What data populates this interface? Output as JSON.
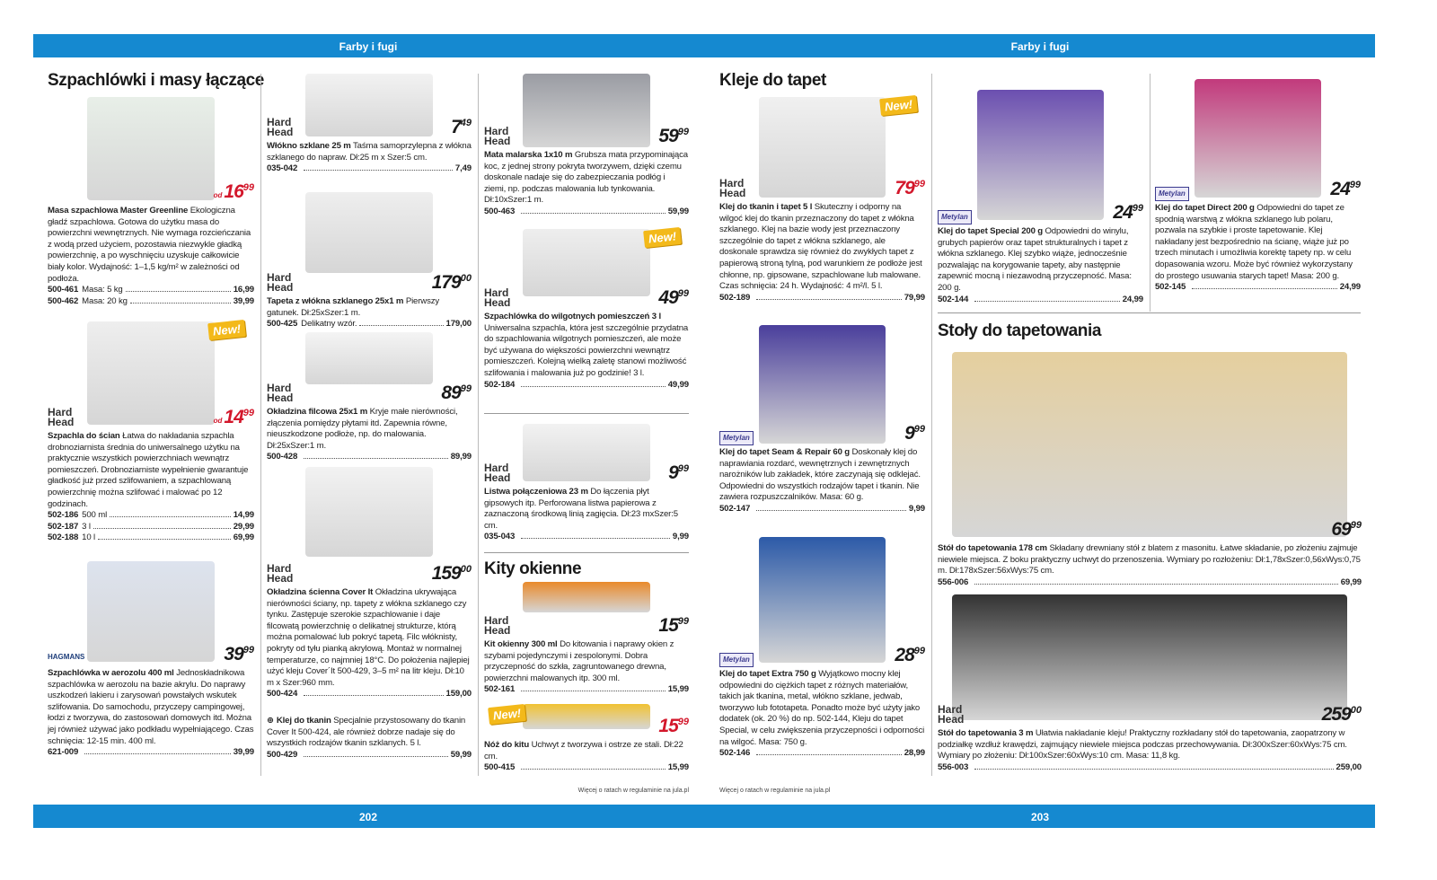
{
  "header": {
    "left": "Farby i fugi",
    "right": "Farby i fugi"
  },
  "footer": {
    "left": "202",
    "right": "203"
  },
  "notes": [
    "Więcej o ratach w regulaminie na jula.pl",
    "Więcej o ratach w regulaminie na jula.pl"
  ],
  "sections": [
    "Szpachlówki i masy łączące",
    "Kity okienne",
    "Kleje do tapet",
    "Stoły do tapetowania"
  ],
  "products": [
    {
      "brand": "",
      "badge": "",
      "price": {
        "prefix": "od",
        "main": "16",
        "cents": "99"
      },
      "name": "Masa szpachlowa Master Greenline",
      "desc": "Ekologiczna gładź szpachlowa. Gotowa do użytku masa do powierzchni wewnętrznych. Nie wymaga rozcieńczania z wodą przed użyciem, pozostawia niezwykle gładką powierzchnię, a po wyschnięciu uzyskuje całkowicie biały kolor. Wydajność: 1–1,5 kg/m² w zależności od podłoża.",
      "skus": [
        {
          "code": "500-461",
          "text": "Masa: 5 kg",
          "price": "16,99"
        },
        {
          "code": "500-462",
          "text": "Masa: 20 kg",
          "price": "39,99"
        }
      ]
    },
    {
      "brand": "Hard Head",
      "badge": "New!",
      "price": {
        "prefix": "od",
        "main": "14",
        "cents": "99"
      },
      "name": "Szpachla do ścian",
      "desc": "Łatwa do nakładania szpachla drobnoziarnista średnia do uniwersalnego użytku na praktycznie wszystkich powierzchniach wewnątrz pomieszczeń. Drobnoziarniste wypełnienie gwarantuje gładkość już przed szlifowaniem, a szpachlowaną powierzchnię można szlifować i malować po 12 godzinach.",
      "skus": [
        {
          "code": "502-186",
          "text": "500 ml",
          "price": "14,99"
        },
        {
          "code": "502-187",
          "text": "3 l",
          "price": "29,99"
        },
        {
          "code": "502-188",
          "text": "10 l",
          "price": "69,99"
        }
      ]
    },
    {
      "brand": "HAGMANS",
      "badge": "",
      "price": {
        "prefix": "",
        "main": "39",
        "cents": "99"
      },
      "name": "Szpachlówka w aerozolu 400 ml",
      "desc": "Jednoskładnikowa szpachlówka w aerozolu na bazie akrylu. Do naprawy uszkodzeń lakieru i zarysowań powstałych wskutek szlifowania. Do samochodu, przyczepy campingowej, łodzi z tworzywa, do zastosowań domowych itd. Można jej również używać jako podkładu wypełniającego. Czas schnięcia: 12-15 min. 400 ml.",
      "skus": [
        {
          "code": "621-009",
          "text": "",
          "price": "39,99"
        }
      ]
    },
    {
      "brand": "Hard Head",
      "badge": "",
      "price": {
        "prefix": "",
        "main": "7",
        "cents": "49"
      },
      "name": "Włókno szklane 25 m",
      "desc": "Taśma samoprzylepna z włókna szklanego do napraw. Dł:25 m x Szer:5 cm.",
      "skus": [
        {
          "code": "035-042",
          "text": "",
          "price": "7,49"
        }
      ]
    },
    {
      "brand": "Hard Head",
      "badge": "",
      "price": {
        "prefix": "",
        "main": "179",
        "cents": "00"
      },
      "name": "Tapeta z włókna szklanego 25x1 m",
      "desc": "Pierwszy gatunek. Dł:25xSzer:1 m.",
      "skus": [
        {
          "code": "500-425",
          "text": "Delikatny wzór.",
          "price": "179,00"
        }
      ]
    },
    {
      "brand": "Hard Head",
      "badge": "",
      "price": {
        "prefix": "",
        "main": "89",
        "cents": "99"
      },
      "name": "Okładzina filcowa 25x1 m",
      "desc": "Kryje małe nierówności, złączenia pomiędzy płytami itd. Zapewnia równe, nieuszkodzone podłoże, np. do malowania. Dł:25xSzer:1 m.",
      "skus": [
        {
          "code": "500-428",
          "text": "",
          "price": "89,99"
        }
      ]
    },
    {
      "brand": "Hard Head",
      "badge": "",
      "price": {
        "prefix": "",
        "main": "159",
        "cents": "00"
      },
      "name": "Okładzina ścienna Cover It",
      "desc": "Okładzina ukrywająca nierówności ściany, np. tapety z włókna szklanego czy tynku. Zastępuje szerokie szpachlowanie i daje filcowatą powierzchnię o delikatnej strukturze, którą można pomalować lub pokryć tapetą. Filc włóknisty, pokryty od tyłu pianką akrylową. Montaż w normalnej temperaturze, co najmniej 18°C. Do położenia najlepiej użyć kleju Cover´It 500-429, 3–5 m² na litr kleju. Dł:10 m x Szer:960 mm.",
      "skus": [
        {
          "code": "500-424",
          "text": "",
          "price": "159,00"
        }
      ]
    },
    {
      "brand": "",
      "badge": "",
      "price": {
        "prefix": "",
        "main": "",
        "cents": ""
      },
      "name": "Klej do tkanin",
      "desc": "Specjalnie przystosowany do tkanin Cover It 500-424, ale również dobrze nadaje się do wszystkich rodzajów tkanin szklanych. 5 l.",
      "skus": [
        {
          "code": "500-429",
          "text": "",
          "price": "59,99"
        }
      ]
    },
    {
      "brand": "Hard Head",
      "badge": "",
      "price": {
        "prefix": "",
        "main": "59",
        "cents": "99"
      },
      "name": "Mata malarska 1x10 m",
      "desc": "Grubsza mata przypominająca koc, z jednej strony pokryta tworzywem, dzięki czemu doskonale nadaje się do zabezpieczania podłóg i ziemi, np. podczas malowania lub tynkowania. Dł:10xSzer:1 m.",
      "skus": [
        {
          "code": "500-463",
          "text": "",
          "price": "59,99"
        }
      ]
    },
    {
      "brand": "Hard Head",
      "badge": "New!",
      "price": {
        "prefix": "",
        "main": "49",
        "cents": "99"
      },
      "name": "Szpachlówka do wilgotnych pomieszczeń 3 l",
      "desc": "Uniwersalna szpachla, która jest szczególnie przydatna do szpachlowania wilgotnych pomieszczeń, ale może być używana do większości powierzchni wewnątrz pomieszczeń. Kolejną wielką zaletę stanowi możliwość szlifowania i malowania już po godzinie! 3 l.",
      "skus": [
        {
          "code": "502-184",
          "text": "",
          "price": "49,99"
        }
      ]
    },
    {
      "brand": "Hard Head",
      "badge": "",
      "price": {
        "prefix": "",
        "main": "9",
        "cents": "99"
      },
      "name": "Listwa połączeniowa 23 m",
      "desc": "Do łączenia płyt gipsowych itp. Perforowana listwa papierowa z zaznaczoną środkową linią zagięcia. Dł:23 mxSzer:5 cm.",
      "skus": [
        {
          "code": "035-043",
          "text": "",
          "price": "9,99"
        }
      ]
    },
    {
      "brand": "Hard Head",
      "badge": "",
      "price": {
        "prefix": "",
        "main": "15",
        "cents": "99"
      },
      "name": "Kit okienny 300 ml",
      "desc": "Do kitowania i naprawy okien z szybami pojedynczymi i zespolonymi. Dobra przyczepność do szkła, zagruntowanego drewna, powierzchni malowanych itp. 300 ml.",
      "skus": [
        {
          "code": "502-161",
          "text": "",
          "price": "15,99"
        }
      ]
    },
    {
      "brand": "",
      "badge": "New!",
      "price": {
        "prefix": "",
        "main": "15",
        "cents": "99"
      },
      "name": "Nóż do kitu",
      "desc": "Uchwyt z tworzywa i ostrze ze stali. Dł:22 cm.",
      "skus": [
        {
          "code": "500-415",
          "text": "",
          "price": "15,99"
        }
      ]
    },
    {
      "brand": "Hard Head",
      "badge": "New!",
      "price": {
        "prefix": "",
        "main": "79",
        "cents": "99"
      },
      "name": "Klej do tkanin i tapet 5 l",
      "desc": "Skuteczny i odporny na wilgoć klej do tkanin przeznaczony do tapet z włókna szklanego. Klej na bazie wody jest przeznaczony szczególnie do tapet z włókna szklanego, ale doskonale sprawdza się również do zwykłych tapet z papierową stroną tylną, pod warunkiem że podłoże jest chłonne, np. gipsowane, szpachlowane lub malowane. Czas schnięcia: 24 h. Wydajność: 4 m²/l. 5 l.",
      "skus": [
        {
          "code": "502-189",
          "text": "",
          "price": "79,99"
        }
      ]
    },
    {
      "brand": "Metylan",
      "badge": "",
      "price": {
        "prefix": "",
        "main": "9",
        "cents": "99"
      },
      "name": "Klej do tapet Seam & Repair 60 g",
      "desc": "Doskonały klej do naprawiania rozdarć, wewnętrznych i zewnętrznych narożników lub zakładek, które zaczynają się odklejać. Odpowiedni do wszystkich rodzajów tapet i tkanin. Nie zawiera rozpuszczalników. Masa: 60 g.",
      "skus": [
        {
          "code": "502-147",
          "text": "",
          "price": "9,99"
        }
      ]
    },
    {
      "brand": "Metylan",
      "badge": "",
      "price": {
        "prefix": "",
        "main": "28",
        "cents": "99"
      },
      "name": "Klej do tapet Extra 750 g",
      "desc": "Wyjątkowo mocny klej odpowiedni do ciężkich tapet z różnych materiałów, takich jak tkanina, metal, włókno szklane, jedwab, tworzywo lub fototapeta. Ponadto może być użyty jako dodatek (ok. 20 %) do np. 502-144, Kleju do tapet Special, w celu zwiększenia przyczepności i odporności na wilgoć. Masa: 750 g.",
      "skus": [
        {
          "code": "502-146",
          "text": "",
          "price": "28,99"
        }
      ]
    },
    {
      "brand": "Metylan",
      "badge": "",
      "price": {
        "prefix": "",
        "main": "24",
        "cents": "99"
      },
      "name": "Klej do tapet Special 200 g",
      "desc": "Odpowiedni do winylu, grubych papierów oraz tapet strukturalnych i tapet z włókna szklanego. Klej szybko wiąże, jednocześnie pozwalając na korygowanie tapety, aby następnie zapewnić mocną i niezawodną przyczepność. Masa: 200 g.",
      "skus": [
        {
          "code": "502-144",
          "text": "",
          "price": "24,99"
        }
      ]
    },
    {
      "brand": "Metylan",
      "badge": "",
      "price": {
        "prefix": "",
        "main": "24",
        "cents": "99"
      },
      "name": "Klej do tapet Direct 200 g",
      "desc": "Odpowiedni do tapet ze spodnią warstwą z włókna szklanego lub polaru, pozwala na szybkie i proste tapetowanie. Klej nakładany jest bezpośrednio na ścianę, wiąże już po trzech minutach i umożliwia korektę tapety np. w celu dopasowania wzoru. Może być również wykorzystany do prostego usuwania starych tapet! Masa: 200 g.",
      "skus": [
        {
          "code": "502-145",
          "text": "",
          "price": "24,99"
        }
      ]
    },
    {
      "brand": "",
      "badge": "",
      "price": {
        "prefix": "",
        "main": "69",
        "cents": "99"
      },
      "name": "Stół do tapetowania 178 cm",
      "desc": "Składany drewniany stół z blatem z masonitu. Łatwe składanie, po złożeniu zajmuje niewiele miejsca. Z boku praktyczny uchwyt do przenoszenia. Wymiary po rozłożeniu: Dł:1,78xSzer:0,56xWys:0,75 m. Dł:178xSzer:56xWys:75 cm.",
      "skus": [
        {
          "code": "556-006",
          "text": "",
          "price": "69,99"
        }
      ]
    },
    {
      "brand": "Hard Head",
      "badge": "",
      "price": {
        "prefix": "",
        "main": "259",
        "cents": "00"
      },
      "name": "Stół do tapetowania 3 m",
      "desc": "Ułatwia nakładanie kleju! Praktyczny rozkładany stół do tapetowania, zaopatrzony w podziałkę wzdłuż krawędzi, zajmujący niewiele miejsca podczas przechowywania. Dł:300xSzer:60xWys:75 cm. Wymiary po złożeniu: Dł:100xSzer:60xWys:10 cm. Masa: 11,8 kg.",
      "skus": [
        {
          "code": "556-003",
          "text": "",
          "price": "259,00"
        }
      ]
    }
  ]
}
